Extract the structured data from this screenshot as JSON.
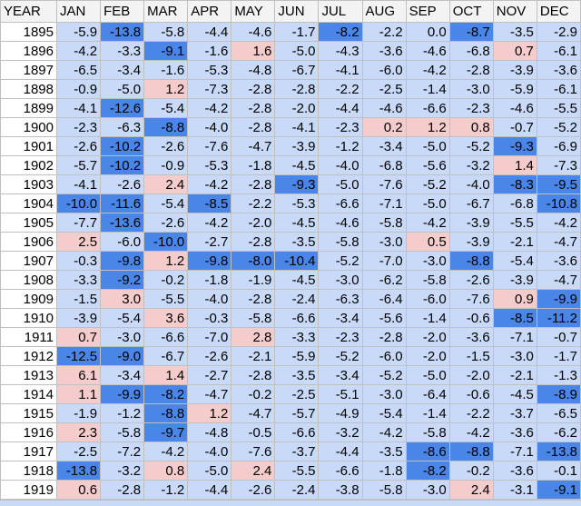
{
  "table": {
    "header": [
      "YEAR",
      "JAN",
      "FEB",
      "MAR",
      "APR",
      "MAY",
      "JUN",
      "JUL",
      "AUG",
      "SEP",
      "OCT",
      "NOV",
      "DEC"
    ],
    "rows": [
      [
        "1895",
        "-5.9",
        "-13.8",
        "-5.8",
        "-4.4",
        "-4.6",
        "-1.7",
        "-8.2",
        "-2.2",
        "0.0",
        "-8.7",
        "-3.5",
        "-2.9"
      ],
      [
        "1896",
        "-4.2",
        "-3.3",
        "-9.1",
        "-1.6",
        "1.6",
        "-5.0",
        "-4.3",
        "-3.6",
        "-4.6",
        "-6.8",
        "0.7",
        "-6.1"
      ],
      [
        "1897",
        "-6.5",
        "-3.4",
        "-1.6",
        "-5.3",
        "-4.8",
        "-6.7",
        "-4.1",
        "-6.0",
        "-4.2",
        "-2.8",
        "-3.9",
        "-3.6"
      ],
      [
        "1898",
        "-0.9",
        "-5.0",
        "1.2",
        "-7.3",
        "-2.8",
        "-2.8",
        "-2.2",
        "-2.5",
        "-1.4",
        "-3.0",
        "-5.9",
        "-6.1"
      ],
      [
        "1899",
        "-4.1",
        "-12.6",
        "-5.4",
        "-4.2",
        "-2.8",
        "-2.0",
        "-4.4",
        "-4.6",
        "-6.6",
        "-2.3",
        "-4.6",
        "-5.5"
      ],
      [
        "1900",
        "-2.3",
        "-6.3",
        "-8.8",
        "-4.0",
        "-2.8",
        "-4.1",
        "-2.3",
        "0.2",
        "1.2",
        "0.8",
        "-0.7",
        "-5.2"
      ],
      [
        "1901",
        "-2.6",
        "-10.2",
        "-2.6",
        "-7.6",
        "-4.7",
        "-3.9",
        "-1.2",
        "-3.4",
        "-5.0",
        "-5.2",
        "-9.3",
        "-6.9"
      ],
      [
        "1902",
        "-5.7",
        "-10.2",
        "-0.9",
        "-5.3",
        "-1.8",
        "-4.5",
        "-4.0",
        "-6.8",
        "-5.6",
        "-3.2",
        "1.4",
        "-7.3"
      ],
      [
        "1903",
        "-4.1",
        "-2.6",
        "2.4",
        "-4.2",
        "-2.8",
        "-9.3",
        "-5.0",
        "-7.6",
        "-5.2",
        "-4.0",
        "-8.3",
        "-9.5"
      ],
      [
        "1904",
        "-10.0",
        "-11.6",
        "-5.4",
        "-8.5",
        "-2.2",
        "-5.3",
        "-6.6",
        "-7.1",
        "-5.0",
        "-6.7",
        "-6.8",
        "-10.8"
      ],
      [
        "1905",
        "-7.7",
        "-13.6",
        "-2.6",
        "-4.2",
        "-2.0",
        "-4.5",
        "-4.6",
        "-5.8",
        "-4.2",
        "-3.9",
        "-5.5",
        "-4.2"
      ],
      [
        "1906",
        "2.5",
        "-6.0",
        "-10.0",
        "-2.7",
        "-2.8",
        "-3.5",
        "-5.8",
        "-3.0",
        "0.5",
        "-3.9",
        "-2.1",
        "-4.7"
      ],
      [
        "1907",
        "-0.3",
        "-9.8",
        "1.2",
        "-9.8",
        "-8.0",
        "-10.4",
        "-5.2",
        "-7.0",
        "-3.0",
        "-8.8",
        "-5.4",
        "-3.6"
      ],
      [
        "1908",
        "-3.3",
        "-9.2",
        "-0.2",
        "-1.8",
        "-1.9",
        "-4.5",
        "-3.0",
        "-6.2",
        "-5.8",
        "-2.6",
        "-3.9",
        "-4.7"
      ],
      [
        "1909",
        "-1.5",
        "3.0",
        "-5.5",
        "-4.0",
        "-2.8",
        "-2.4",
        "-6.3",
        "-6.4",
        "-6.0",
        "-7.6",
        "0.9",
        "-9.9"
      ],
      [
        "1910",
        "-3.9",
        "-5.4",
        "3.6",
        "-0.3",
        "-5.8",
        "-6.6",
        "-3.4",
        "-5.6",
        "-1.4",
        "-0.6",
        "-8.5",
        "-11.2"
      ],
      [
        "1911",
        "0.7",
        "-3.0",
        "-6.6",
        "-7.0",
        "2.8",
        "-3.3",
        "-2.3",
        "-2.8",
        "-2.0",
        "-3.6",
        "-7.1",
        "-0.7"
      ],
      [
        "1912",
        "-12.5",
        "-9.0",
        "-6.7",
        "-2.6",
        "-2.1",
        "-5.9",
        "-5.2",
        "-6.0",
        "-2.0",
        "-1.5",
        "-3.0",
        "-1.7"
      ],
      [
        "1913",
        "6.1",
        "-3.4",
        "1.4",
        "-2.7",
        "-2.8",
        "-3.5",
        "-3.4",
        "-5.2",
        "-5.0",
        "-2.0",
        "-2.1",
        "-1.3"
      ],
      [
        "1914",
        "1.1",
        "-9.9",
        "-8.2",
        "-4.7",
        "-0.2",
        "-2.5",
        "-5.1",
        "-3.0",
        "-6.4",
        "-0.6",
        "-4.5",
        "-8.9"
      ],
      [
        "1915",
        "-1.9",
        "-1.2",
        "-8.8",
        "1.2",
        "-4.7",
        "-5.7",
        "-4.9",
        "-5.4",
        "-1.4",
        "-2.2",
        "-3.7",
        "-6.5"
      ],
      [
        "1916",
        "2.3",
        "-5.8",
        "-9.7",
        "-4.8",
        "-0.5",
        "-6.6",
        "-3.2",
        "-4.2",
        "-5.8",
        "-4.2",
        "-3.6",
        "-6.2"
      ],
      [
        "1917",
        "-2.5",
        "-7.2",
        "-4.2",
        "-4.0",
        "-7.6",
        "-3.7",
        "-4.4",
        "-3.5",
        "-8.6",
        "-8.8",
        "-7.1",
        "-13.8"
      ],
      [
        "1918",
        "-13.8",
        "-3.2",
        "0.8",
        "-5.0",
        "2.4",
        "-5.5",
        "-6.6",
        "-1.8",
        "-8.2",
        "-0.2",
        "-3.6",
        "-0.1"
      ],
      [
        "1919",
        "0.6",
        "-2.8",
        "-1.2",
        "-4.4",
        "-2.6",
        "-2.4",
        "-3.8",
        "-5.8",
        "-3.0",
        "2.4",
        "-3.1",
        "-9.1"
      ]
    ],
    "cell_color": "#c9daf8",
    "above": 0,
    "above_color": "#f4cccc",
    "at_or_below": -8,
    "at_or_below_color": "#4a86e8"
  }
}
